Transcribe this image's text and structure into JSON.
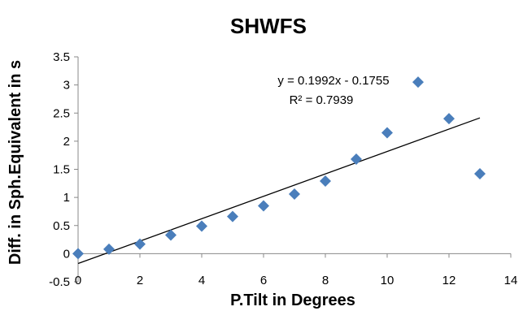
{
  "chart_data": {
    "type": "scatter",
    "title": "SHWFS",
    "xlabel": "P.Tilt in Degrees",
    "ylabel": "Diff. in Sph.Equivalent in s",
    "xlim": [
      0,
      14
    ],
    "ylim": [
      -0.5,
      3.5
    ],
    "x_ticks": [
      "0",
      "2",
      "4",
      "6",
      "8",
      "10",
      "12",
      "14"
    ],
    "y_ticks": [
      "-0.5",
      "0",
      "0.5",
      "1",
      "1.5",
      "2",
      "2.5",
      "3",
      "3.5"
    ],
    "grid": false,
    "legend": "none",
    "marker": "diamond",
    "marker_color": "#4a7ebb",
    "x": [
      0,
      1,
      2,
      3,
      4,
      5,
      6,
      7,
      8,
      9,
      10,
      11,
      12,
      13
    ],
    "y": [
      0.0,
      0.08,
      0.17,
      0.33,
      0.49,
      0.66,
      0.85,
      1.06,
      1.29,
      1.68,
      2.15,
      3.05,
      2.4,
      1.42
    ],
    "trendline": {
      "type": "linear",
      "slope": 0.1992,
      "intercept": -0.1755,
      "equation": "y = 0.1992x - 0.1755",
      "r_squared": "R² = 0.7939",
      "color": "#000000"
    }
  }
}
